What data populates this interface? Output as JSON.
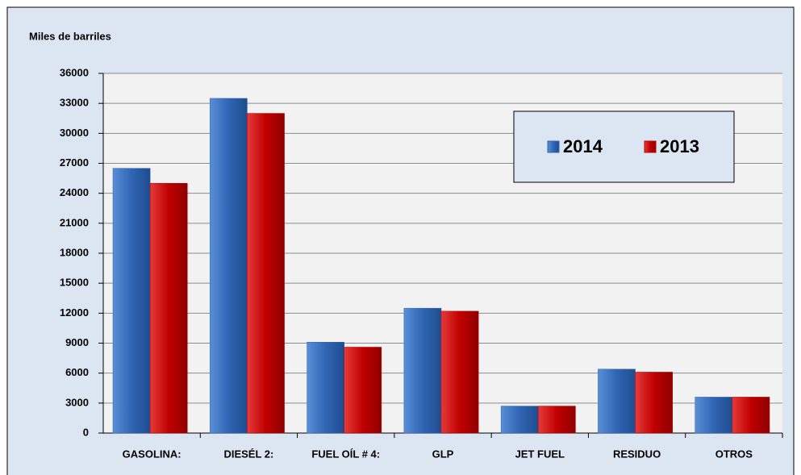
{
  "chart_data": {
    "type": "bar",
    "y_label": "Miles de barriles",
    "categories": [
      "GASOLINA:",
      "DIESÉL 2:",
      "FUEL OÍL # 4:",
      "GLP",
      "JET FUEL",
      "RESIDUO",
      "OTROS"
    ],
    "series": [
      {
        "name": "2014",
        "color": "#2f65b3",
        "values": [
          26500,
          33500,
          9100,
          12500,
          2700,
          6400,
          3600
        ]
      },
      {
        "name": "2013",
        "color": "#c00000",
        "values": [
          25000,
          32000,
          8600,
          12200,
          2700,
          6100,
          3600
        ]
      }
    ],
    "ylim": [
      0,
      36000
    ],
    "yticks": [
      0,
      3000,
      6000,
      9000,
      12000,
      15000,
      18000,
      21000,
      24000,
      27000,
      30000,
      33000,
      36000
    ],
    "grid": true,
    "legend": "upper right"
  }
}
